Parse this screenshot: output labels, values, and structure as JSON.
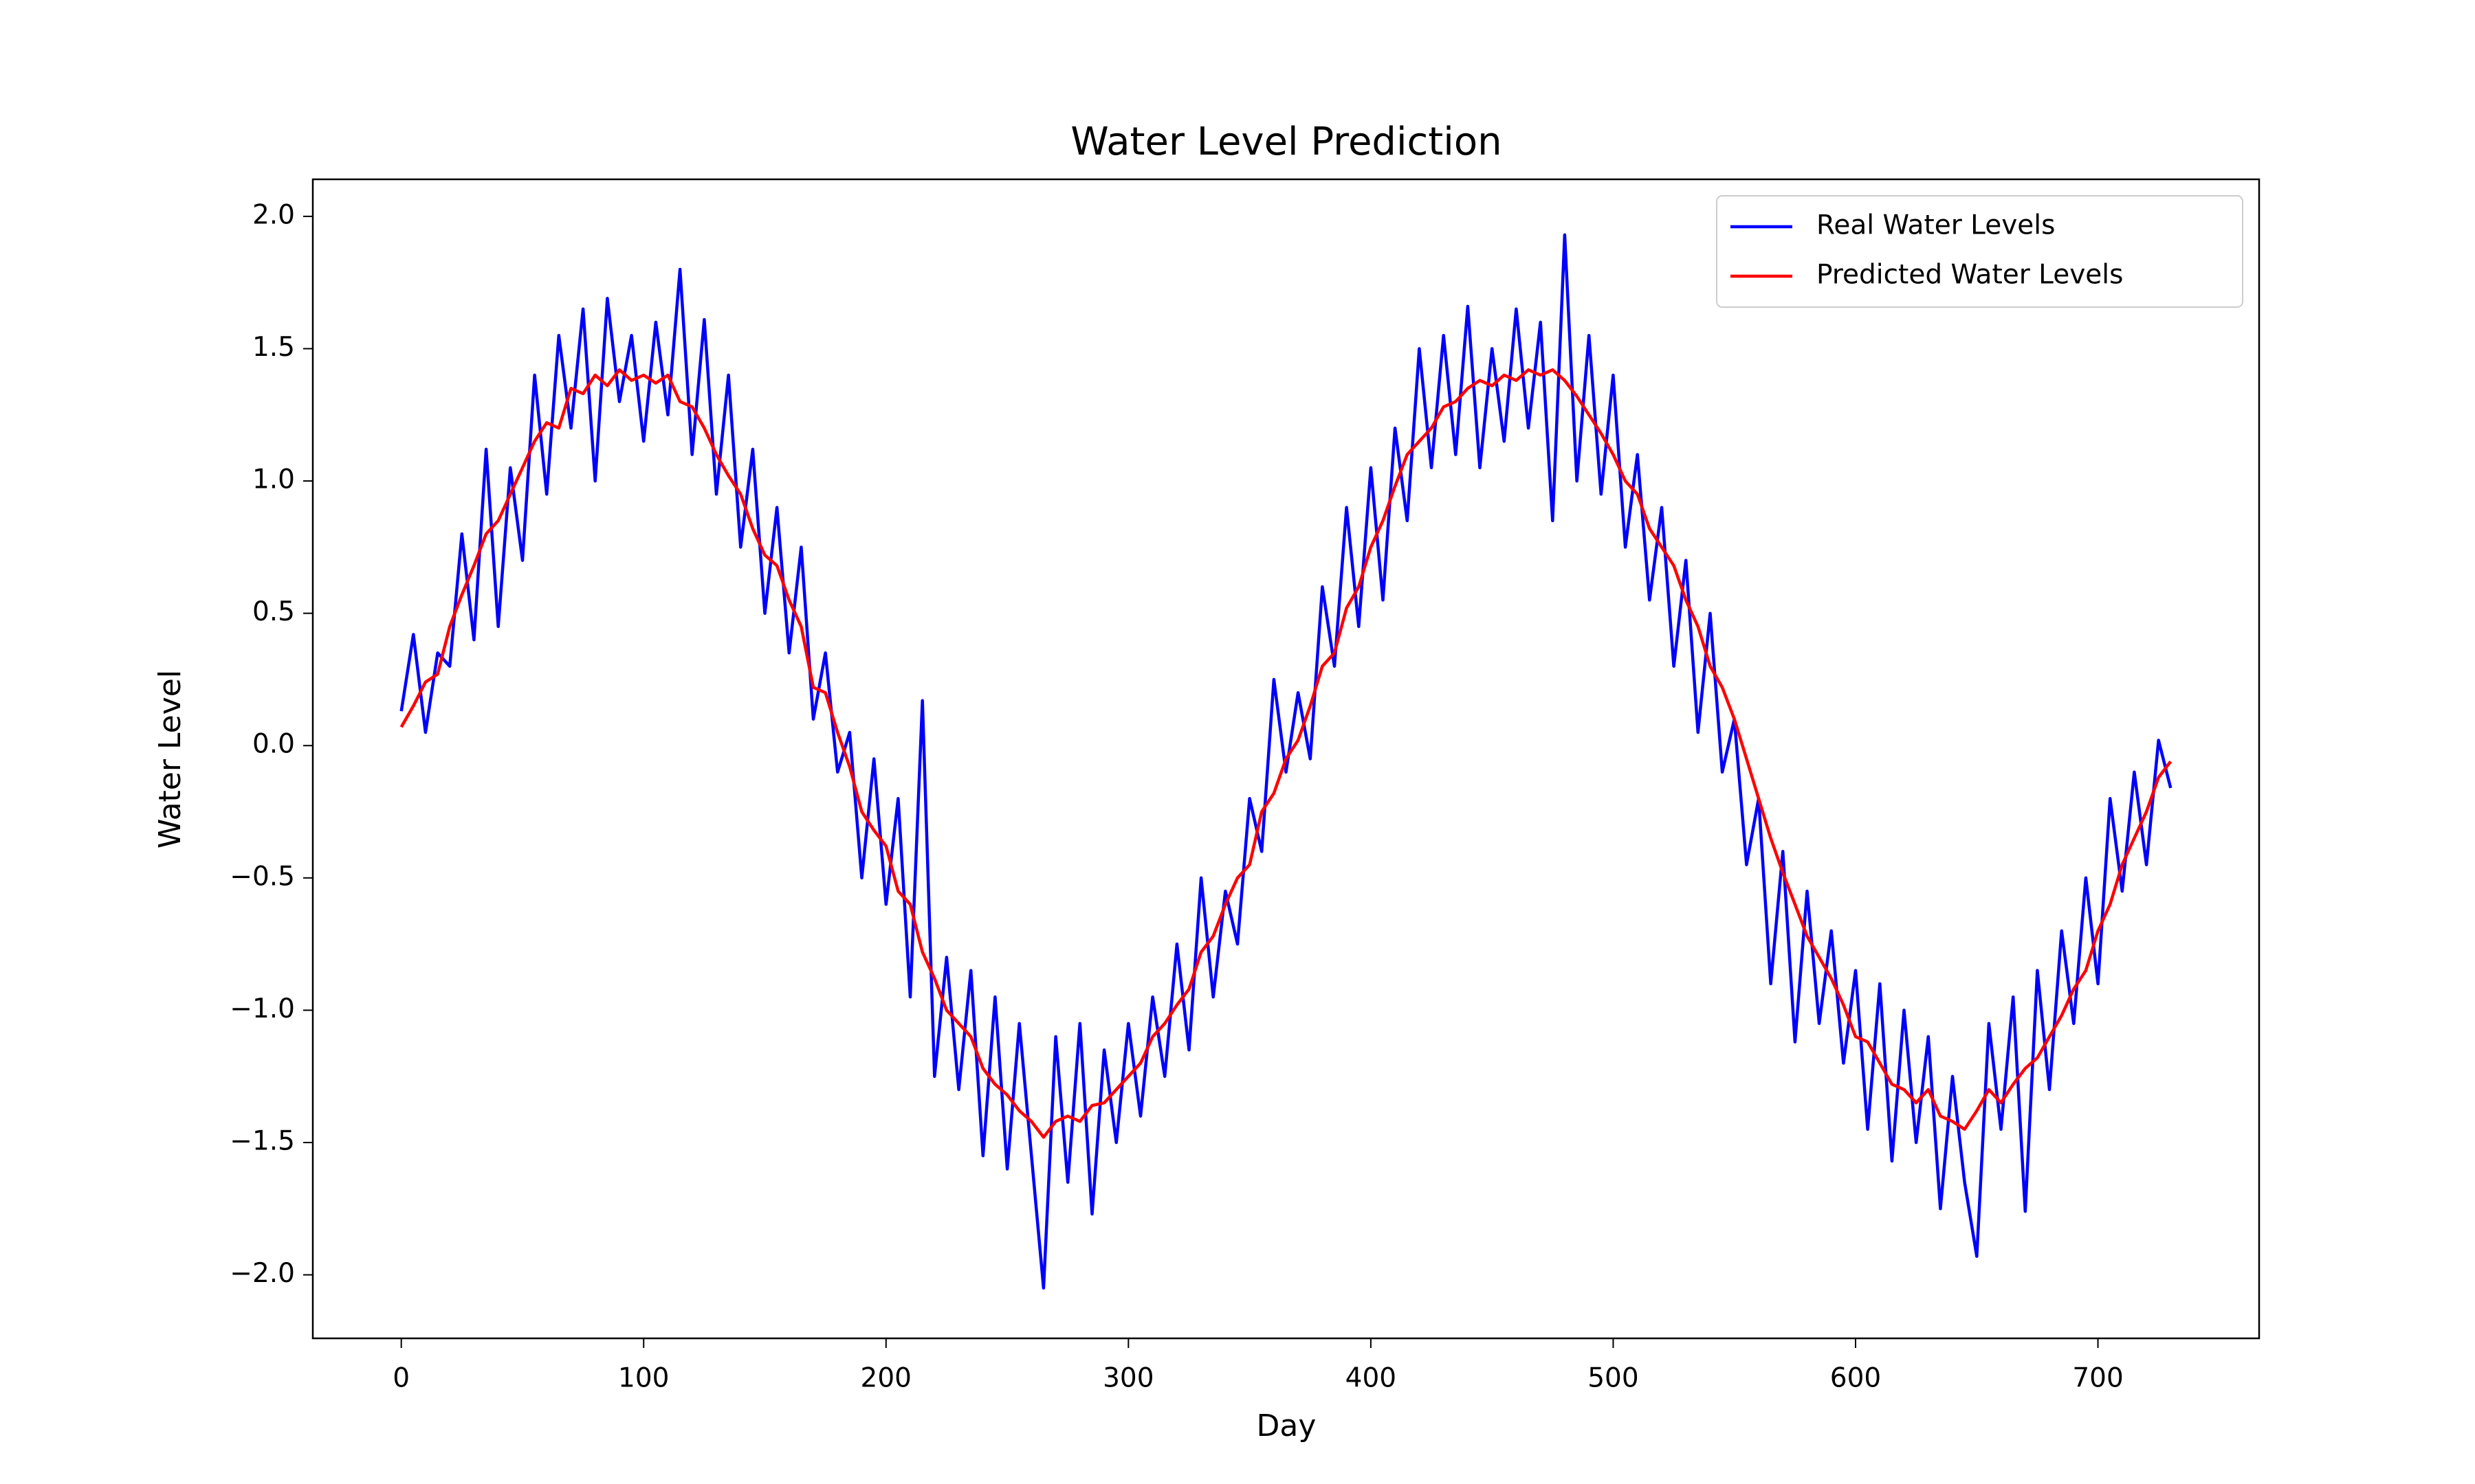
{
  "chart_data": {
    "type": "line",
    "title": "Water Level Prediction",
    "x_label": "Day",
    "y_label": "Water Level",
    "x": [
      0,
      5,
      10,
      15,
      20,
      25,
      30,
      35,
      40,
      45,
      50,
      55,
      60,
      65,
      70,
      75,
      80,
      85,
      90,
      95,
      100,
      105,
      110,
      115,
      120,
      125,
      130,
      135,
      140,
      145,
      150,
      155,
      160,
      165,
      170,
      175,
      180,
      185,
      190,
      195,
      200,
      205,
      210,
      215,
      220,
      225,
      230,
      235,
      240,
      245,
      250,
      255,
      260,
      265,
      270,
      275,
      280,
      285,
      290,
      295,
      300,
      305,
      310,
      315,
      320,
      325,
      330,
      335,
      340,
      345,
      350,
      355,
      360,
      365,
      370,
      375,
      380,
      385,
      390,
      395,
      400,
      405,
      410,
      415,
      420,
      425,
      430,
      435,
      440,
      445,
      450,
      455,
      460,
      465,
      470,
      475,
      480,
      485,
      490,
      495,
      500,
      505,
      510,
      515,
      520,
      525,
      530,
      535,
      540,
      545,
      550,
      555,
      560,
      565,
      570,
      575,
      580,
      585,
      590,
      595,
      600,
      605,
      610,
      615,
      620,
      625,
      630,
      635,
      640,
      645,
      650,
      655,
      660,
      665,
      670,
      675,
      680,
      685,
      690,
      695,
      700,
      705,
      710,
      715,
      720,
      725,
      730
    ],
    "series": [
      {
        "name": "Real Water Levels",
        "color": "#0000ff",
        "values": [
          0.13,
          0.42,
          0.05,
          0.35,
          0.3,
          0.8,
          0.4,
          1.12,
          0.45,
          1.05,
          0.7,
          1.4,
          0.95,
          1.55,
          1.2,
          1.65,
          1.0,
          1.69,
          1.3,
          1.55,
          1.15,
          1.6,
          1.25,
          1.8,
          1.1,
          1.61,
          0.95,
          1.4,
          0.75,
          1.12,
          0.5,
          0.9,
          0.35,
          0.75,
          0.1,
          0.35,
          -0.1,
          0.05,
          -0.5,
          -0.05,
          -0.6,
          -0.2,
          -0.95,
          0.17,
          -1.25,
          -0.8,
          -1.3,
          -0.85,
          -1.55,
          -0.95,
          -1.6,
          -1.05,
          -1.55,
          -2.05,
          -1.1,
          -1.65,
          -1.05,
          -1.77,
          -1.15,
          -1.5,
          -1.05,
          -1.4,
          -0.95,
          -1.25,
          -0.75,
          -1.15,
          -0.5,
          -0.95,
          -0.55,
          -0.75,
          -0.2,
          -0.4,
          0.25,
          -0.1,
          0.2,
          -0.05,
          0.6,
          0.3,
          0.9,
          0.45,
          1.05,
          0.55,
          1.2,
          0.85,
          1.5,
          1.05,
          1.55,
          1.1,
          1.66,
          1.05,
          1.5,
          1.15,
          1.65,
          1.2,
          1.6,
          0.85,
          1.93,
          1.0,
          1.55,
          0.95,
          1.4,
          0.75,
          1.1,
          0.55,
          0.9,
          0.3,
          0.7,
          0.05,
          0.5,
          -0.1,
          0.1,
          -0.45,
          -0.2,
          -0.9,
          -0.4,
          -1.12,
          -0.55,
          -1.05,
          -0.7,
          -1.2,
          -0.85,
          -1.45,
          -0.9,
          -1.57,
          -1.0,
          -1.5,
          -1.1,
          -1.75,
          -1.25,
          -1.65,
          -1.93,
          -1.05,
          -1.45,
          -0.95,
          -1.76,
          -0.85,
          -1.3,
          -0.7,
          -1.05,
          -0.5,
          -0.9,
          -0.2,
          -0.55,
          -0.1,
          -0.45,
          0.02,
          -0.16
        ]
      },
      {
        "name": "Predicted Water Levels",
        "color": "#ff0000",
        "values": [
          0.07,
          0.15,
          0.24,
          0.27,
          0.45,
          0.57,
          0.68,
          0.8,
          0.85,
          0.95,
          1.05,
          1.15,
          1.22,
          1.2,
          1.35,
          1.33,
          1.4,
          1.36,
          1.42,
          1.38,
          1.4,
          1.37,
          1.4,
          1.3,
          1.28,
          1.2,
          1.1,
          1.02,
          0.95,
          0.82,
          0.72,
          0.68,
          0.55,
          0.45,
          0.22,
          0.2,
          0.05,
          -0.08,
          -0.25,
          -0.32,
          -0.38,
          -0.55,
          -0.6,
          -0.78,
          -0.88,
          -1.0,
          -1.05,
          -1.1,
          -1.22,
          -1.28,
          -1.32,
          -1.38,
          -1.42,
          -1.48,
          -1.42,
          -1.4,
          -1.42,
          -1.36,
          -1.35,
          -1.3,
          -1.25,
          -1.2,
          -1.1,
          -1.05,
          -0.98,
          -0.92,
          -0.78,
          -0.72,
          -0.6,
          -0.5,
          -0.45,
          -0.25,
          -0.18,
          -0.05,
          0.02,
          0.15,
          0.3,
          0.35,
          0.52,
          0.6,
          0.75,
          0.85,
          0.98,
          1.1,
          1.15,
          1.2,
          1.28,
          1.3,
          1.35,
          1.38,
          1.36,
          1.4,
          1.38,
          1.42,
          1.4,
          1.42,
          1.38,
          1.32,
          1.25,
          1.18,
          1.1,
          1.0,
          0.95,
          0.82,
          0.75,
          0.68,
          0.55,
          0.45,
          0.3,
          0.22,
          0.1,
          -0.05,
          -0.2,
          -0.35,
          -0.48,
          -0.6,
          -0.72,
          -0.8,
          -0.88,
          -0.98,
          -1.1,
          -1.12,
          -1.2,
          -1.28,
          -1.3,
          -1.35,
          -1.3,
          -1.4,
          -1.42,
          -1.45,
          -1.38,
          -1.3,
          -1.35,
          -1.28,
          -1.22,
          -1.18,
          -1.1,
          -1.02,
          -0.92,
          -0.85,
          -0.7,
          -0.6,
          -0.45,
          -0.35,
          -0.25,
          -0.12,
          -0.06
        ]
      }
    ],
    "xlim": [
      -36.5,
      766.5
    ],
    "ylim": [
      -2.24,
      2.14
    ],
    "xticks": [
      0,
      100,
      200,
      300,
      400,
      500,
      600,
      700
    ],
    "yticks": [
      {
        "value": -2,
        "label": "−2.0"
      },
      {
        "value": -1.5,
        "label": "−1.5"
      },
      {
        "value": -1,
        "label": "−1.0"
      },
      {
        "value": -0.5,
        "label": "−0.5"
      },
      {
        "value": 0,
        "label": "0.0"
      },
      {
        "value": 0.5,
        "label": "0.5"
      },
      {
        "value": 1,
        "label": "1.0"
      },
      {
        "value": 1.5,
        "label": "1.5"
      },
      {
        "value": 2,
        "label": "2.0"
      }
    ],
    "legend": "upper right"
  }
}
